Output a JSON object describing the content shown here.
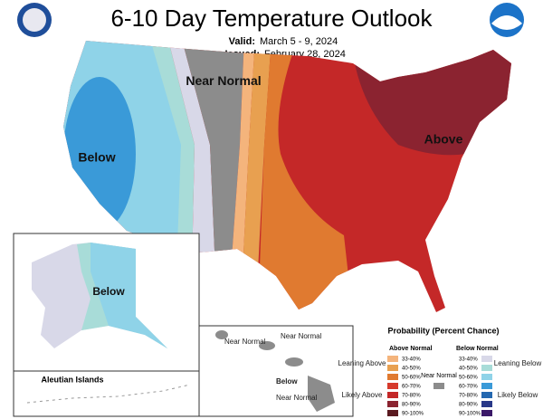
{
  "header": {
    "title": "6-10 Day Temperature Outlook",
    "valid_label": "Valid:",
    "valid_dates": "March 5 - 9, 2024",
    "issued_label": "Issued:",
    "issued_date": "February 28, 2024"
  },
  "conus": {
    "near_normal": "Near Normal",
    "below": "Below",
    "above": "Above"
  },
  "alaska": {
    "below": "Below",
    "aleutian_title": "Aleutian Islands"
  },
  "hawaii": {
    "labels": [
      "Near Normal",
      "Near Normal",
      "Below",
      "Near Normal"
    ]
  },
  "legend": {
    "title": "Probability (Percent Chance)",
    "above_heading": "Above Normal",
    "below_heading": "Below Normal",
    "leaning_above": "Leaning Above",
    "likely_above": "Likely Above",
    "near_normal": "Near Normal",
    "leaning_below": "Leaning Below",
    "likely_below": "Likely Below",
    "near_color": "#8c8c8c",
    "above": [
      {
        "label": "33-40%",
        "color": "#f4b47c"
      },
      {
        "label": "40-50%",
        "color": "#e8a050"
      },
      {
        "label": "50-60%",
        "color": "#e07a30"
      },
      {
        "label": "60-70%",
        "color": "#d63a2c"
      },
      {
        "label": "70-80%",
        "color": "#c42828"
      },
      {
        "label": "80-90%",
        "color": "#8b2330"
      },
      {
        "label": "90-100%",
        "color": "#5a1a20"
      }
    ],
    "below": [
      {
        "label": "33-40%",
        "color": "#d8d8e8"
      },
      {
        "label": "40-50%",
        "color": "#a8dcd8"
      },
      {
        "label": "50-60%",
        "color": "#8fd3e8"
      },
      {
        "label": "60-70%",
        "color": "#3a9ad8"
      },
      {
        "label": "70-80%",
        "color": "#2468b0"
      },
      {
        "label": "80-90%",
        "color": "#283888"
      },
      {
        "label": "90-100%",
        "color": "#3a1868"
      }
    ]
  }
}
